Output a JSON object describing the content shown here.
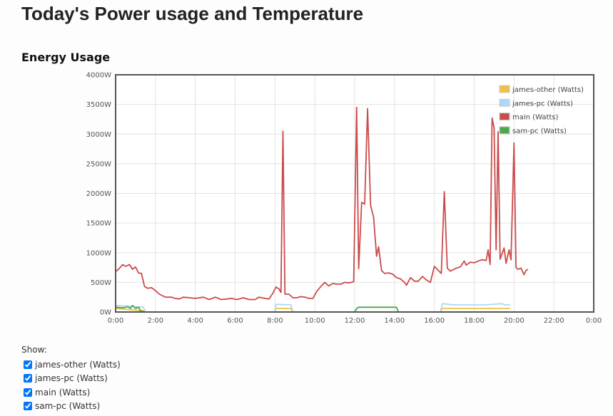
{
  "page": {
    "title": "Today's Power usage and Temperature",
    "section_title": "Energy Usage"
  },
  "show": {
    "label": "Show:",
    "options": [
      {
        "label": "james-other (Watts)",
        "checked": true
      },
      {
        "label": "james-pc (Watts)",
        "checked": true
      },
      {
        "label": "main (Watts)",
        "checked": true
      },
      {
        "label": "sam-pc (Watts)",
        "checked": true
      }
    ]
  },
  "chart_data": {
    "type": "line",
    "title": "",
    "xlabel": "",
    "ylabel": "",
    "xlim": [
      0,
      24
    ],
    "ylim": [
      0,
      4000
    ],
    "grid": true,
    "legend_position": "top-right",
    "x_ticks": [
      "0:00",
      "2:00",
      "4:00",
      "6:00",
      "8:00",
      "10:00",
      "12:00",
      "14:00",
      "16:00",
      "18:00",
      "20:00",
      "22:00",
      "0:00"
    ],
    "y_ticks": [
      "0W",
      "500W",
      "1000W",
      "1500W",
      "2000W",
      "2500W",
      "3000W",
      "3500W",
      "4000W"
    ],
    "series": [
      {
        "name": "james-other (Watts)",
        "color": "#edc240",
        "points": [
          [
            0,
            60
          ],
          [
            1.4,
            20
          ],
          [
            1.5,
            0
          ],
          [
            8,
            0
          ],
          [
            8.05,
            60
          ],
          [
            8.8,
            60
          ],
          [
            8.9,
            0
          ],
          [
            16.3,
            0
          ],
          [
            16.4,
            60
          ],
          [
            19.8,
            60
          ]
        ]
      },
      {
        "name": "james-pc (Watts)",
        "color": "#afd8f8",
        "points": [
          [
            0,
            110
          ],
          [
            1.4,
            80
          ],
          [
            1.5,
            0
          ],
          [
            8,
            0
          ],
          [
            8.05,
            130
          ],
          [
            8.8,
            120
          ],
          [
            8.9,
            0
          ],
          [
            16.3,
            0
          ],
          [
            16.4,
            140
          ],
          [
            17,
            120
          ],
          [
            18.5,
            120
          ],
          [
            19.4,
            140
          ],
          [
            19.5,
            120
          ],
          [
            19.8,
            120
          ]
        ]
      },
      {
        "name": "main (Watts)",
        "color": "#cb4b4b",
        "points": [
          [
            0,
            680
          ],
          [
            0.2,
            740
          ],
          [
            0.35,
            800
          ],
          [
            0.5,
            770
          ],
          [
            0.7,
            800
          ],
          [
            0.85,
            720
          ],
          [
            1,
            760
          ],
          [
            1.15,
            660
          ],
          [
            1.3,
            650
          ],
          [
            1.45,
            430
          ],
          [
            1.6,
            400
          ],
          [
            1.8,
            410
          ],
          [
            2,
            360
          ],
          [
            2.2,
            300
          ],
          [
            2.5,
            250
          ],
          [
            2.8,
            250
          ],
          [
            3,
            230
          ],
          [
            3.2,
            220
          ],
          [
            3.4,
            250
          ],
          [
            3.7,
            240
          ],
          [
            4,
            230
          ],
          [
            4.4,
            250
          ],
          [
            4.7,
            210
          ],
          [
            5,
            250
          ],
          [
            5.3,
            210
          ],
          [
            5.6,
            220
          ],
          [
            5.8,
            230
          ],
          [
            6.1,
            210
          ],
          [
            6.4,
            240
          ],
          [
            6.7,
            210
          ],
          [
            7,
            210
          ],
          [
            7.2,
            250
          ],
          [
            7.5,
            230
          ],
          [
            7.7,
            220
          ],
          [
            7.9,
            320
          ],
          [
            8.05,
            420
          ],
          [
            8.2,
            390
          ],
          [
            8.3,
            330
          ],
          [
            8.4,
            3050
          ],
          [
            8.5,
            300
          ],
          [
            8.7,
            300
          ],
          [
            8.9,
            240
          ],
          [
            9.1,
            240
          ],
          [
            9.3,
            260
          ],
          [
            9.5,
            250
          ],
          [
            9.7,
            230
          ],
          [
            9.9,
            230
          ],
          [
            10.1,
            350
          ],
          [
            10.3,
            430
          ],
          [
            10.5,
            500
          ],
          [
            10.7,
            440
          ],
          [
            10.9,
            480
          ],
          [
            11.1,
            470
          ],
          [
            11.3,
            470
          ],
          [
            11.5,
            500
          ],
          [
            11.7,
            490
          ],
          [
            11.95,
            510
          ],
          [
            12.1,
            3450
          ],
          [
            12.2,
            730
          ],
          [
            12.35,
            1850
          ],
          [
            12.5,
            1820
          ],
          [
            12.65,
            3430
          ],
          [
            12.8,
            1800
          ],
          [
            12.95,
            1600
          ],
          [
            13.1,
            940
          ],
          [
            13.2,
            1100
          ],
          [
            13.35,
            700
          ],
          [
            13.5,
            650
          ],
          [
            13.7,
            660
          ],
          [
            13.9,
            640
          ],
          [
            14.1,
            580
          ],
          [
            14.3,
            560
          ],
          [
            14.5,
            500
          ],
          [
            14.6,
            450
          ],
          [
            14.8,
            580
          ],
          [
            15,
            520
          ],
          [
            15.2,
            520
          ],
          [
            15.4,
            600
          ],
          [
            15.6,
            540
          ],
          [
            15.8,
            500
          ],
          [
            16,
            770
          ],
          [
            16.2,
            700
          ],
          [
            16.35,
            650
          ],
          [
            16.5,
            2030
          ],
          [
            16.65,
            740
          ],
          [
            16.8,
            690
          ],
          [
            17.1,
            740
          ],
          [
            17.3,
            760
          ],
          [
            17.5,
            860
          ],
          [
            17.6,
            790
          ],
          [
            17.8,
            840
          ],
          [
            18,
            830
          ],
          [
            18.2,
            860
          ],
          [
            18.4,
            880
          ],
          [
            18.6,
            870
          ],
          [
            18.7,
            1050
          ],
          [
            18.8,
            800
          ],
          [
            18.9,
            3270
          ],
          [
            19,
            3100
          ],
          [
            19.1,
            1050
          ],
          [
            19.2,
            3040
          ],
          [
            19.3,
            890
          ],
          [
            19.5,
            1080
          ],
          [
            19.6,
            820
          ],
          [
            19.75,
            1050
          ],
          [
            19.85,
            880
          ],
          [
            20,
            2850
          ],
          [
            20.1,
            750
          ],
          [
            20.2,
            720
          ],
          [
            20.35,
            740
          ],
          [
            20.5,
            630
          ],
          [
            20.6,
            700
          ],
          [
            20.7,
            720
          ]
        ]
      },
      {
        "name": "sam-pc (Watts)",
        "color": "#4da74d",
        "points": [
          [
            0,
            80
          ],
          [
            0.4,
            70
          ],
          [
            0.6,
            90
          ],
          [
            0.75,
            60
          ],
          [
            0.85,
            110
          ],
          [
            1,
            60
          ],
          [
            1.15,
            80
          ],
          [
            1.25,
            20
          ],
          [
            1.45,
            0
          ],
          [
            1.5,
            0
          ],
          [
            12,
            0
          ],
          [
            12.1,
            60
          ],
          [
            12.2,
            80
          ],
          [
            14.1,
            80
          ],
          [
            14.2,
            0
          ],
          [
            16.3,
            0
          ],
          [
            16.4,
            0
          ],
          [
            19.8,
            0
          ]
        ]
      }
    ]
  }
}
